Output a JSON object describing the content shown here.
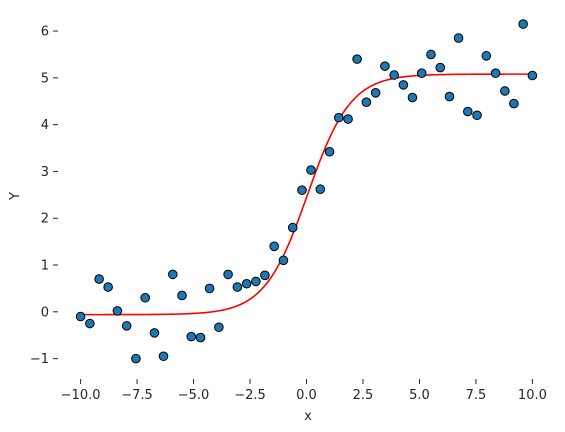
{
  "chart_data": {
    "type": "scatter",
    "title": "",
    "xlabel": "x",
    "ylabel": "Y",
    "xlim": [
      -11,
      11
    ],
    "ylim": [
      -1.35,
      6.45
    ],
    "grid": false,
    "xticks": [
      -10,
      -7.5,
      -5,
      -2.5,
      0,
      2.5,
      5,
      7.5,
      10
    ],
    "xtick_labels": [
      "−10.0",
      "−7.5",
      "−5.0",
      "−2.5",
      "0.0",
      "2.5",
      "5.0",
      "7.5",
      "10.0"
    ],
    "yticks": [
      -1,
      0,
      1,
      2,
      3,
      4,
      5,
      6
    ],
    "ytick_labels": [
      "−1",
      "0",
      "1",
      "2",
      "3",
      "4",
      "5",
      "6"
    ],
    "colors": {
      "points": "#1f77b4",
      "point_edge": "#000000",
      "fit": "#ff0000"
    },
    "series": [
      {
        "kind": "scatter",
        "x": [
          -10.0,
          -9.59,
          -9.18,
          -8.78,
          -8.37,
          -7.96,
          -7.55,
          -7.14,
          -6.73,
          -6.33,
          -5.92,
          -5.51,
          -5.1,
          -4.69,
          -4.29,
          -3.88,
          -3.47,
          -3.06,
          -2.65,
          -2.24,
          -1.84,
          -1.43,
          -1.02,
          -0.61,
          -0.2,
          0.2,
          0.61,
          1.02,
          1.43,
          1.84,
          2.24,
          2.65,
          3.06,
          3.47,
          3.88,
          4.29,
          4.69,
          5.1,
          5.51,
          5.92,
          6.33,
          6.73,
          7.14,
          7.55,
          7.96,
          8.37,
          8.78,
          9.18,
          9.59,
          10.0
        ],
        "y": [
          -0.1,
          -0.25,
          0.7,
          0.53,
          0.02,
          -0.3,
          -1.0,
          0.3,
          -0.45,
          -0.95,
          0.8,
          0.35,
          -0.53,
          -0.55,
          0.5,
          -0.33,
          0.8,
          0.53,
          0.6,
          0.65,
          0.78,
          1.4,
          1.1,
          1.8,
          2.6,
          3.03,
          2.62,
          3.42,
          4.15,
          4.12,
          5.4,
          4.48,
          4.68,
          5.25,
          5.06,
          4.85,
          4.58,
          5.1,
          5.5,
          5.22,
          4.6,
          5.85,
          4.28,
          4.2,
          5.47,
          5.1,
          4.72,
          4.45,
          6.15,
          5.05
        ]
      },
      {
        "kind": "line",
        "model": "logistic",
        "lower": -0.06,
        "upper": 5.08,
        "midpoint": 0.05,
        "rate": 1.05
      }
    ]
  }
}
